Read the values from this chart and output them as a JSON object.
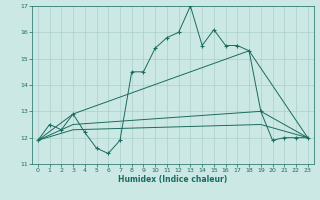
{
  "title": "",
  "xlabel": "Humidex (Indice chaleur)",
  "bg_color": "#cce8e4",
  "line_color": "#1a6b60",
  "grid_color": "#aad0ca",
  "xlim": [
    -0.5,
    23.5
  ],
  "ylim": [
    11,
    17
  ],
  "yticks": [
    11,
    12,
    13,
    14,
    15,
    16,
    17
  ],
  "xticks": [
    0,
    1,
    2,
    3,
    4,
    5,
    6,
    7,
    8,
    9,
    10,
    11,
    12,
    13,
    14,
    15,
    16,
    17,
    18,
    19,
    20,
    21,
    22,
    23
  ],
  "series_main": {
    "x": [
      0,
      1,
      2,
      3,
      4,
      5,
      6,
      7,
      8,
      9,
      10,
      11,
      12,
      13,
      14,
      15,
      16,
      17,
      18,
      19,
      20,
      21,
      22,
      23
    ],
    "y": [
      11.9,
      12.5,
      12.3,
      12.9,
      12.2,
      11.6,
      11.4,
      11.9,
      14.5,
      14.5,
      15.4,
      15.8,
      16.0,
      17.0,
      15.5,
      16.1,
      15.5,
      15.5,
      15.3,
      13.0,
      11.9,
      12.0,
      12.0,
      12.0
    ]
  },
  "series_smooth": [
    {
      "x": [
        0,
        3,
        18,
        23
      ],
      "y": [
        11.9,
        12.9,
        15.3,
        12.0
      ]
    },
    {
      "x": [
        0,
        3,
        19,
        23
      ],
      "y": [
        11.9,
        12.5,
        13.0,
        12.0
      ]
    },
    {
      "x": [
        0,
        3,
        19,
        23
      ],
      "y": [
        11.9,
        12.3,
        12.5,
        12.0
      ]
    }
  ]
}
